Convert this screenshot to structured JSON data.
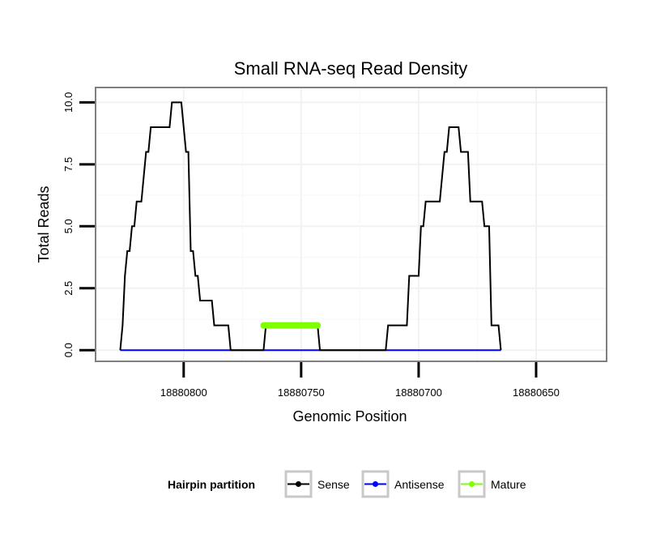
{
  "chart_data": {
    "type": "line",
    "title": "Small RNA-seq Read Density",
    "xlabel": "Genomic Position",
    "ylabel": "Total Reads",
    "xlim": [
      18880837.5,
      18880620
    ],
    "ylim": [
      -0.45,
      10.6
    ],
    "x_ticks": [
      18880800,
      18880750,
      18880700,
      18880650
    ],
    "x_tick_labels": [
      "18880800",
      "18880750",
      "18880700",
      "18880650"
    ],
    "y_ticks": [
      0,
      2.5,
      5,
      7.5,
      10
    ],
    "y_tick_labels": [
      "0.0",
      "2.5",
      "5.0",
      "7.5",
      "10.0"
    ],
    "legend": {
      "title": "Hairpin partition",
      "position": "bottom",
      "entries": [
        {
          "label": "Sense",
          "color": "#000000"
        },
        {
          "label": "Antisense",
          "color": "#0000ff"
        },
        {
          "label": "Mature",
          "color": "#7fff00"
        }
      ]
    },
    "series": [
      {
        "name": "Sense",
        "color": "#000000",
        "points": [
          [
            18880827,
            0
          ],
          [
            18880826,
            1
          ],
          [
            18880825,
            3
          ],
          [
            18880824,
            4
          ],
          [
            18880823,
            4
          ],
          [
            18880822,
            5
          ],
          [
            18880821,
            5
          ],
          [
            18880820,
            6
          ],
          [
            18880818,
            6
          ],
          [
            18880817,
            7
          ],
          [
            18880816,
            8
          ],
          [
            18880815,
            8
          ],
          [
            18880814,
            9
          ],
          [
            18880806,
            9
          ],
          [
            18880805,
            10
          ],
          [
            18880801,
            10
          ],
          [
            18880800,
            9
          ],
          [
            18880799,
            8
          ],
          [
            18880798,
            8
          ],
          [
            18880797,
            4
          ],
          [
            18880796,
            4
          ],
          [
            18880795,
            3
          ],
          [
            18880794,
            3
          ],
          [
            18880793,
            2
          ],
          [
            18880788,
            2
          ],
          [
            18880787,
            1
          ],
          [
            18880781,
            1
          ],
          [
            18880780,
            0
          ],
          [
            18880766,
            0
          ],
          [
            18880765,
            1
          ],
          [
            18880743,
            1
          ],
          [
            18880742,
            0
          ],
          [
            18880714,
            0
          ],
          [
            18880713,
            1
          ],
          [
            18880705,
            1
          ],
          [
            18880704,
            3
          ],
          [
            18880700,
            3
          ],
          [
            18880699,
            5
          ],
          [
            18880698,
            5
          ],
          [
            18880697,
            6
          ],
          [
            18880691,
            6
          ],
          [
            18880690,
            7
          ],
          [
            18880689,
            8
          ],
          [
            18880688,
            8
          ],
          [
            18880687,
            9
          ],
          [
            18880683,
            9
          ],
          [
            18880682,
            8
          ],
          [
            18880679,
            8
          ],
          [
            18880678,
            6
          ],
          [
            18880673,
            6
          ],
          [
            18880672,
            5
          ],
          [
            18880670,
            5
          ],
          [
            18880669,
            1
          ],
          [
            18880666,
            1
          ],
          [
            18880665,
            0
          ]
        ]
      },
      {
        "name": "Antisense",
        "color": "#0000ff",
        "points": [
          [
            18880827,
            0
          ],
          [
            18880665,
            0
          ]
        ]
      },
      {
        "name": "Mature",
        "color": "#7fff00",
        "points": [
          [
            18880766,
            1
          ],
          [
            18880743,
            1
          ]
        ]
      }
    ]
  }
}
